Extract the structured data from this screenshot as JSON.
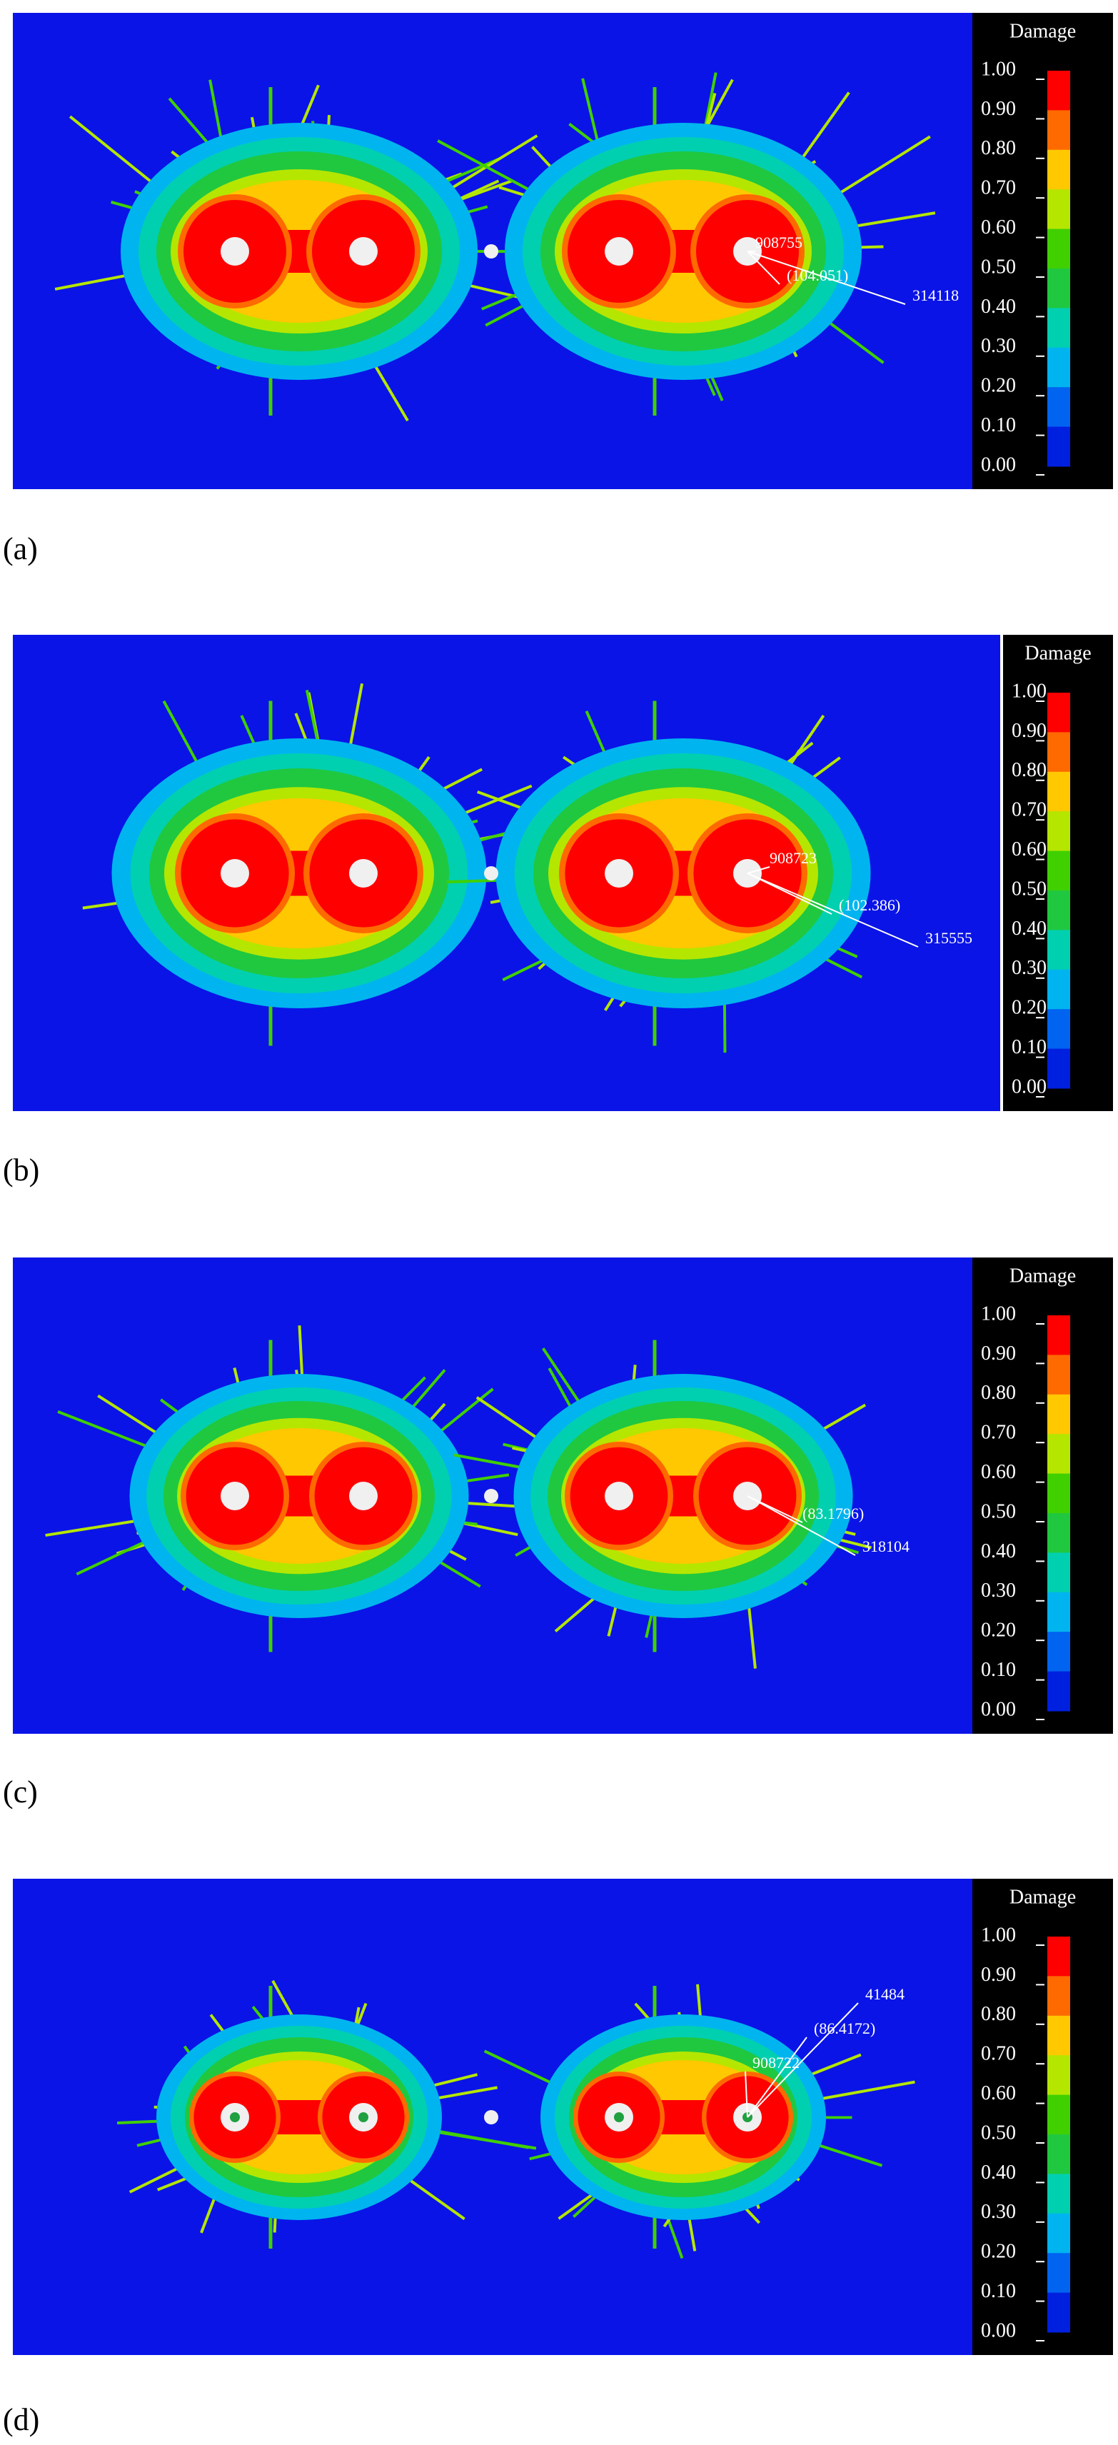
{
  "legend_colors": [
    "#ff0000",
    "#ff6a00",
    "#ffc800",
    "#b4e600",
    "#40d000",
    "#20c840",
    "#00d0b0",
    "#00b4f0",
    "#0064f0",
    "#0020e0"
  ],
  "panels": [
    {
      "label": "(a)",
      "legend": {
        "title": "Damage",
        "ticks": [
          "1.00",
          "0.90",
          "0.80",
          "0.70",
          "0.60",
          "0.50",
          "0.40",
          "0.30",
          "0.20",
          "0.10",
          "0.00"
        ]
      },
      "annotations": [
        "908755",
        "(104.051)",
        "314118"
      ]
    },
    {
      "label": "(b)",
      "legend": {
        "title": "Damage",
        "ticks": [
          "1.00",
          "0.90",
          "0.80",
          "0.70",
          "0.60",
          "0.50",
          "0.40",
          "0.30",
          "0.20",
          "0.10",
          "0.00"
        ]
      },
      "annotations": [
        "908723",
        "(102.386)",
        "315555"
      ]
    },
    {
      "label": "(c)",
      "legend": {
        "title": "Damage",
        "ticks": [
          "1.00",
          "0.90",
          "0.80",
          "0.70",
          "0.60",
          "0.50",
          "0.40",
          "0.30",
          "0.20",
          "0.10",
          "0.00"
        ]
      },
      "annotations": [
        "(83.1796)",
        "318104"
      ]
    },
    {
      "label": "(d)",
      "legend": {
        "title": "Damage",
        "ticks": [
          "1.00",
          "0.90",
          "0.80",
          "0.70",
          "0.60",
          "0.50",
          "0.40",
          "0.30",
          "0.20",
          "0.10",
          "0.00"
        ]
      },
      "annotations": [
        "41484",
        "(86.4172)",
        "908722"
      ]
    }
  ]
}
